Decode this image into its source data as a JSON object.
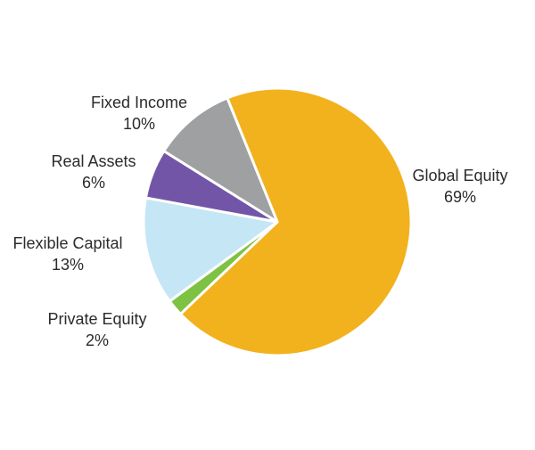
{
  "chart_data": {
    "type": "pie",
    "title": "",
    "slices": [
      {
        "label": "Global Equity",
        "value": 69,
        "value_label": "69%",
        "color": "#F2B21E"
      },
      {
        "label": "Private Equity",
        "value": 2,
        "value_label": "2%",
        "color": "#7DC242"
      },
      {
        "label": "Flexible Capital",
        "value": 13,
        "value_label": "13%",
        "color": "#C5E6F5"
      },
      {
        "label": "Real Assets",
        "value": 6,
        "value_label": "6%",
        "color": "#7355A8"
      },
      {
        "label": "Fixed Income",
        "value": 10,
        "value_label": "10%",
        "color": "#9EA0A2"
      }
    ],
    "legend": "none",
    "label_placement": "outside",
    "slice_border_color": "#FFFFFF"
  }
}
